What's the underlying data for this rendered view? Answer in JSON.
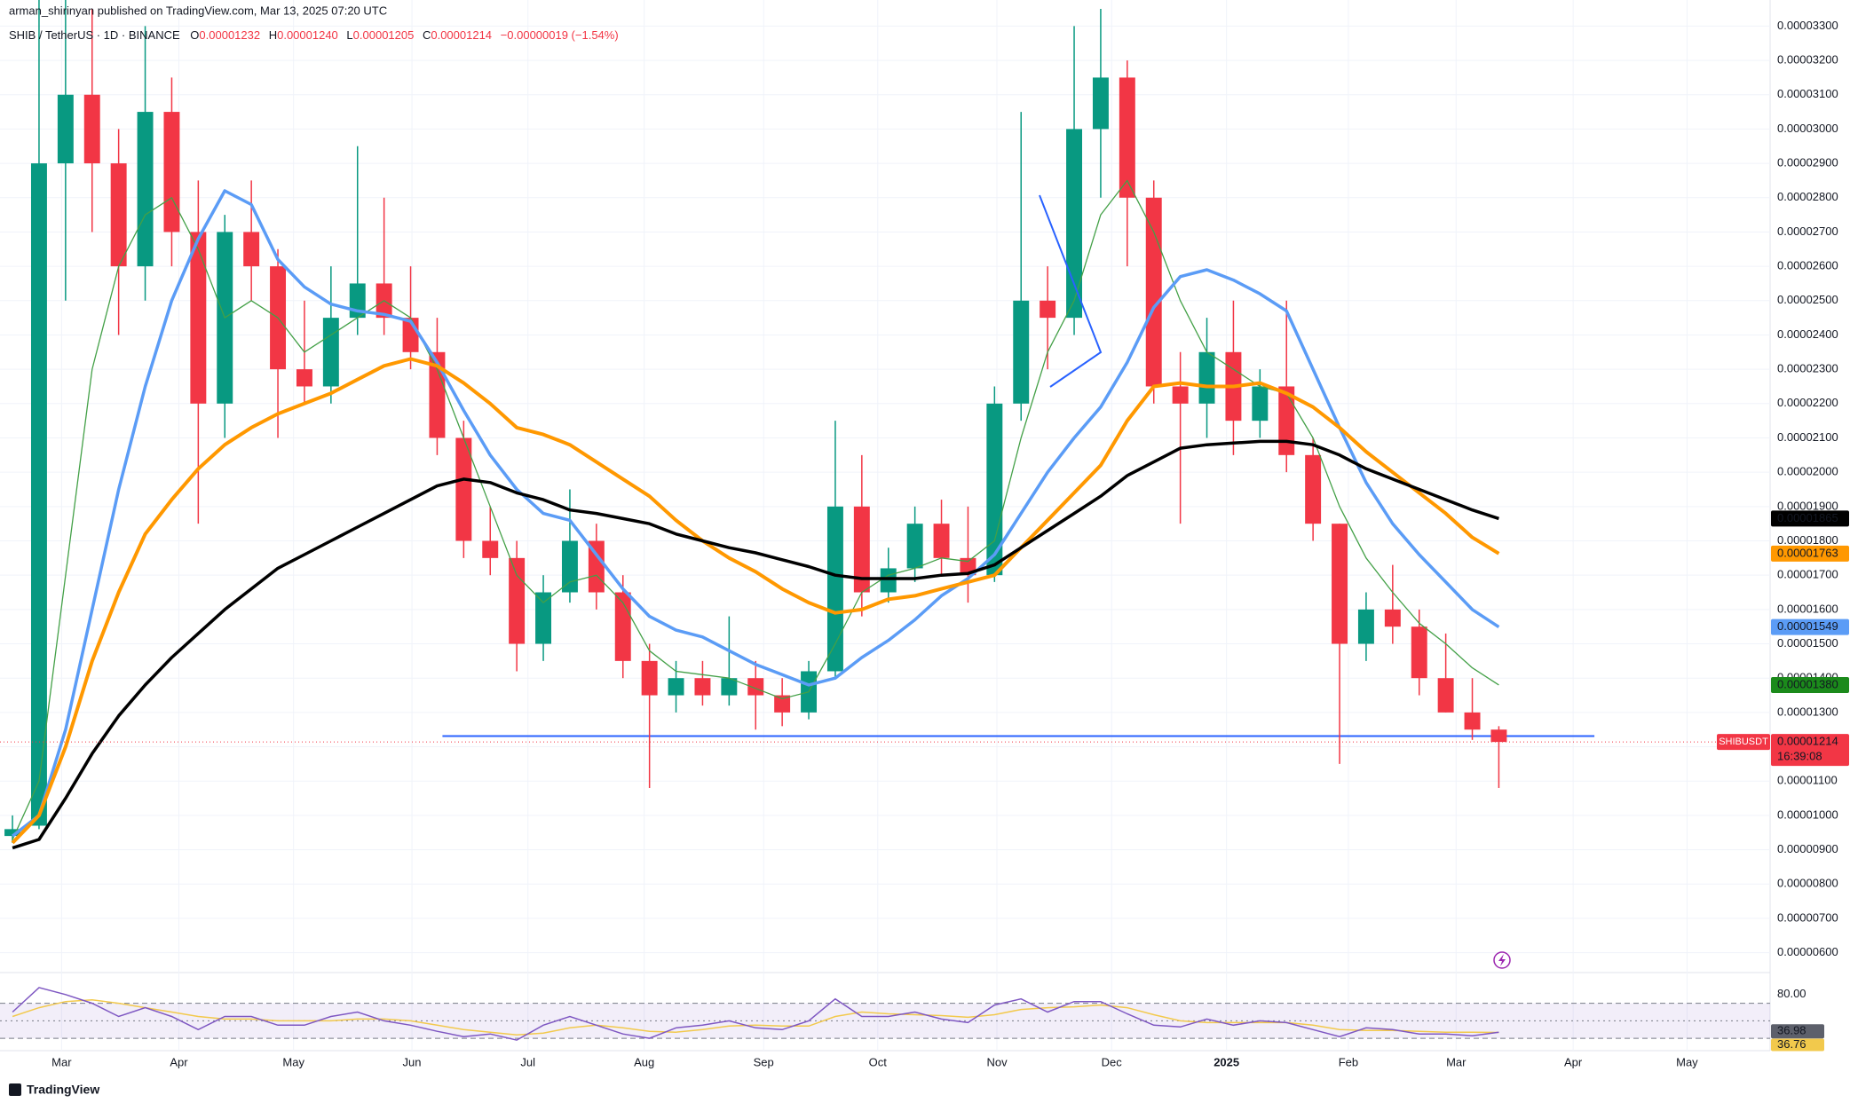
{
  "header": {
    "publisher": "arman_shirinyan published on TradingView.com, Mar 13, 2025 07:20 UTC",
    "symbol": "SHIB / TetherUS · 1D · BINANCE",
    "ohlc": [
      {
        "key": "O",
        "value": "0.00001232"
      },
      {
        "key": "H",
        "value": "0.00001240"
      },
      {
        "key": "L",
        "value": "0.00001205"
      },
      {
        "key": "C",
        "value": "0.00001214"
      }
    ],
    "change": "−0.00000019 (−1.54%)"
  },
  "chart_data": {
    "type": "candlestick",
    "categories": [
      null,
      null,
      null,
      null,
      null,
      null,
      null,
      null,
      null,
      null,
      null,
      null,
      null,
      null,
      null,
      null,
      null,
      null,
      null,
      null,
      null,
      null,
      null,
      null,
      null,
      null,
      null,
      null,
      null,
      null,
      null,
      null,
      null,
      null,
      null,
      null,
      null,
      null,
      null,
      null,
      null,
      null,
      null,
      null,
      null,
      null,
      null,
      null,
      null,
      null,
      null,
      null,
      null,
      null,
      null,
      null,
      null
    ],
    "open": [
      9.4e-06,
      9.7e-06,
      2.9e-05,
      3.1e-05,
      2.9e-05,
      2.6e-05,
      3.05e-05,
      2.7e-05,
      2.2e-05,
      2.7e-05,
      2.6e-05,
      2.3e-05,
      2.25e-05,
      2.45e-05,
      2.55e-05,
      2.45e-05,
      2.35e-05,
      2.1e-05,
      1.8e-05,
      1.75e-05,
      1.5e-05,
      1.65e-05,
      1.8e-05,
      1.65e-05,
      1.45e-05,
      1.35e-05,
      1.4e-05,
      1.35e-05,
      1.4e-05,
      1.35e-05,
      1.3e-05,
      1.42e-05,
      1.9e-05,
      1.65e-05,
      1.72e-05,
      1.85e-05,
      1.75e-05,
      1.7e-05,
      2.2e-05,
      2.5e-05,
      2.45e-05,
      3e-05,
      3.15e-05,
      2.8e-05,
      2.25e-05,
      2.2e-05,
      2.35e-05,
      2.15e-05,
      2.25e-05,
      2.05e-05,
      1.85e-05,
      1.5e-05,
      1.6e-05,
      1.55e-05,
      1.4e-05,
      1.3e-05,
      1.25e-05
    ],
    "high": [
      1e-05,
      3.4e-05,
      3.5e-05,
      3.35e-05,
      3e-05,
      3.3e-05,
      3.15e-05,
      2.85e-05,
      2.75e-05,
      2.85e-05,
      2.65e-05,
      2.5e-05,
      2.6e-05,
      2.95e-05,
      2.8e-05,
      2.6e-05,
      2.45e-05,
      2.15e-05,
      1.9e-05,
      1.8e-05,
      1.7e-05,
      1.95e-05,
      1.85e-05,
      1.7e-05,
      1.5e-05,
      1.45e-05,
      1.45e-05,
      1.58e-05,
      1.45e-05,
      1.4e-05,
      1.45e-05,
      2.15e-05,
      2.05e-05,
      1.78e-05,
      1.9e-05,
      1.92e-05,
      1.9e-05,
      2.25e-05,
      3.05e-05,
      2.6e-05,
      3.3e-05,
      3.35e-05,
      3.2e-05,
      2.85e-05,
      2.35e-05,
      2.45e-05,
      2.5e-05,
      2.3e-05,
      2.5e-05,
      2.1e-05,
      1.85e-05,
      1.65e-05,
      1.73e-05,
      1.6e-05,
      1.53e-05,
      1.4e-05,
      1.26e-05
    ],
    "low": [
      9.2e-06,
      9.6e-06,
      2.5e-05,
      2.7e-05,
      2.4e-05,
      2.5e-05,
      2.6e-05,
      1.85e-05,
      2.1e-05,
      2.5e-05,
      2.1e-05,
      2.2e-05,
      2.2e-05,
      2.4e-05,
      2.4e-05,
      2.3e-05,
      2.05e-05,
      1.75e-05,
      1.7e-05,
      1.42e-05,
      1.45e-05,
      1.62e-05,
      1.6e-05,
      1.4e-05,
      1.08e-05,
      1.3e-05,
      1.32e-05,
      1.32e-05,
      1.25e-05,
      1.26e-05,
      1.28e-05,
      1.4e-05,
      1.58e-05,
      1.62e-05,
      1.68e-05,
      1.7e-05,
      1.62e-05,
      1.68e-05,
      2.15e-05,
      2.3e-05,
      2.4e-05,
      2.8e-05,
      2.6e-05,
      2.2e-05,
      1.85e-05,
      2.1e-05,
      2.05e-05,
      2.1e-05,
      2e-05,
      1.8e-05,
      1.15e-05,
      1.45e-05,
      1.5e-05,
      1.35e-05,
      1.3e-05,
      1.22e-05,
      1.08e-05
    ],
    "close": [
      9.6e-06,
      2.9e-05,
      3.1e-05,
      2.9e-05,
      2.6e-05,
      3.05e-05,
      2.7e-05,
      2.2e-05,
      2.7e-05,
      2.6e-05,
      2.3e-05,
      2.25e-05,
      2.45e-05,
      2.55e-05,
      2.45e-05,
      2.35e-05,
      2.1e-05,
      1.8e-05,
      1.75e-05,
      1.5e-05,
      1.65e-05,
      1.8e-05,
      1.65e-05,
      1.45e-05,
      1.35e-05,
      1.4e-05,
      1.35e-05,
      1.4e-05,
      1.35e-05,
      1.3e-05,
      1.42e-05,
      1.9e-05,
      1.65e-05,
      1.72e-05,
      1.85e-05,
      1.75e-05,
      1.7e-05,
      2.2e-05,
      2.5e-05,
      2.45e-05,
      3e-05,
      3.15e-05,
      2.8e-05,
      2.25e-05,
      2.2e-05,
      2.35e-05,
      2.15e-05,
      2.25e-05,
      2.05e-05,
      1.85e-05,
      1.5e-05,
      1.6e-05,
      1.55e-05,
      1.4e-05,
      1.3e-05,
      1.25e-05,
      1.214e-05
    ],
    "up_color": "#089981",
    "down_color": "#f23645",
    "xlim": [
      -0.47,
      66.22
    ],
    "ylim": [
      5.55e-06,
      3.376e-05
    ],
    "xticks": [
      {
        "value": 1.85,
        "label": "Mar"
      },
      {
        "value": 6.27,
        "label": "Apr"
      },
      {
        "value": 10.59,
        "label": "May"
      },
      {
        "value": 15.05,
        "label": "Jun"
      },
      {
        "value": 19.42,
        "label": "Jul"
      },
      {
        "value": 23.8,
        "label": "Aug"
      },
      {
        "value": 28.3,
        "label": "Sep"
      },
      {
        "value": 32.6,
        "label": "Oct"
      },
      {
        "value": 37.09,
        "label": "Nov"
      },
      {
        "value": 41.41,
        "label": "Dec"
      },
      {
        "value": 45.74,
        "label": "2025"
      },
      {
        "value": 50.33,
        "label": "Feb"
      },
      {
        "value": 54.39,
        "label": "Mar"
      },
      {
        "value": 58.8,
        "label": "Apr"
      },
      {
        "value": 63.09,
        "label": "May"
      }
    ],
    "yticks": [
      {
        "value": 6e-06,
        "label": "0.00000600"
      },
      {
        "value": 7e-06,
        "label": "0.00000700"
      },
      {
        "value": 8e-06,
        "label": "0.00000800"
      },
      {
        "value": 9e-06,
        "label": "0.00000900"
      },
      {
        "value": 1e-05,
        "label": "0.00001000"
      },
      {
        "value": 1.1e-05,
        "label": "0.00001100"
      },
      {
        "value": 1.2e-05,
        "label": "0.00001200"
      },
      {
        "value": 1.3e-05,
        "label": "0.00001300"
      },
      {
        "value": 1.4e-05,
        "label": "0.00001400"
      },
      {
        "value": 1.5e-05,
        "label": "0.00001500"
      },
      {
        "value": 1.6e-05,
        "label": "0.00001600"
      },
      {
        "value": 1.7e-05,
        "label": "0.00001700"
      },
      {
        "value": 1.8e-05,
        "label": "0.00001800"
      },
      {
        "value": 1.9e-05,
        "label": "0.00001900"
      },
      {
        "value": 2e-05,
        "label": "0.00002000"
      },
      {
        "value": 2.1e-05,
        "label": "0.00002100"
      },
      {
        "value": 2.2e-05,
        "label": "0.00002200"
      },
      {
        "value": 2.3e-05,
        "label": "0.00002300"
      },
      {
        "value": 2.4e-05,
        "label": "0.00002400"
      },
      {
        "value": 2.5e-05,
        "label": "0.00002500"
      },
      {
        "value": 2.6e-05,
        "label": "0.00002600"
      },
      {
        "value": 2.7e-05,
        "label": "0.00002700"
      },
      {
        "value": 2.8e-05,
        "label": "0.00002800"
      },
      {
        "value": 2.9e-05,
        "label": "0.00002900"
      },
      {
        "value": 3e-05,
        "label": "0.00003000"
      },
      {
        "value": 3.1e-05,
        "label": "0.00003100"
      },
      {
        "value": 3.2e-05,
        "label": "0.00003200"
      },
      {
        "value": 3.3e-05,
        "label": "0.00003300"
      }
    ],
    "grid": true,
    "moving_averages": [
      {
        "color": "#43a047",
        "width": 1.3,
        "last_label": "0.00001380",
        "label_color": "#1b8a1b",
        "values": [
          9.3e-06,
          1.1e-05,
          1.7e-05,
          2.3e-05,
          2.6e-05,
          2.75e-05,
          2.8e-05,
          2.65e-05,
          2.45e-05,
          2.5e-05,
          2.45e-05,
          2.35e-05,
          2.4e-05,
          2.45e-05,
          2.5e-05,
          2.45e-05,
          2.3e-05,
          2.1e-05,
          1.9e-05,
          1.7e-05,
          1.62e-05,
          1.68e-05,
          1.7e-05,
          1.62e-05,
          1.48e-05,
          1.42e-05,
          1.41e-05,
          1.4e-05,
          1.37e-05,
          1.34e-05,
          1.36e-05,
          1.5e-05,
          1.65e-05,
          1.7e-05,
          1.72e-05,
          1.75e-05,
          1.74e-05,
          1.8e-05,
          2.1e-05,
          2.35e-05,
          2.5e-05,
          2.75e-05,
          2.85e-05,
          2.7e-05,
          2.5e-05,
          2.35e-05,
          2.3e-05,
          2.25e-05,
          2.23e-05,
          2.1e-05,
          1.9e-05,
          1.75e-05,
          1.65e-05,
          1.56e-05,
          1.5e-05,
          1.43e-05,
          1.38e-05
        ]
      },
      {
        "color": "#5b9cf6",
        "width": 3.5,
        "last_label": "0.00001549",
        "label_color": "#5b9cf6",
        "values": [
          9.4e-06,
          1e-05,
          1.25e-05,
          1.6e-05,
          1.95e-05,
          2.25e-05,
          2.5e-05,
          2.68e-05,
          2.82e-05,
          2.78e-05,
          2.62e-05,
          2.54e-05,
          2.49e-05,
          2.47e-05,
          2.46e-05,
          2.44e-05,
          2.32e-05,
          2.18e-05,
          2.05e-05,
          1.95e-05,
          1.88e-05,
          1.86e-05,
          1.76e-05,
          1.66e-05,
          1.58e-05,
          1.54e-05,
          1.52e-05,
          1.48e-05,
          1.44e-05,
          1.41e-05,
          1.38e-05,
          1.4e-05,
          1.46e-05,
          1.51e-05,
          1.57e-05,
          1.64e-05,
          1.69e-05,
          1.76e-05,
          1.88e-05,
          2e-05,
          2.1e-05,
          2.19e-05,
          2.32e-05,
          2.48e-05,
          2.57e-05,
          2.59e-05,
          2.56e-05,
          2.52e-05,
          2.47e-05,
          2.3e-05,
          2.13e-05,
          1.97e-05,
          1.85e-05,
          1.76e-05,
          1.68e-05,
          1.6e-05,
          1.549e-05
        ]
      },
      {
        "color": "#ff9800",
        "width": 4,
        "last_label": "0.00001763",
        "label_color": "#ff9800",
        "values": [
          9.2e-06,
          1e-05,
          1.2e-05,
          1.45e-05,
          1.65e-05,
          1.82e-05,
          1.92e-05,
          2.01e-05,
          2.08e-05,
          2.13e-05,
          2.17e-05,
          2.2e-05,
          2.23e-05,
          2.27e-05,
          2.31e-05,
          2.33e-05,
          2.31e-05,
          2.26e-05,
          2.2e-05,
          2.13e-05,
          2.11e-05,
          2.08e-05,
          2.03e-05,
          1.98e-05,
          1.93e-05,
          1.86e-05,
          1.8e-05,
          1.75e-05,
          1.71e-05,
          1.66e-05,
          1.62e-05,
          1.59e-05,
          1.6e-05,
          1.63e-05,
          1.64e-05,
          1.66e-05,
          1.68e-05,
          1.7e-05,
          1.78e-05,
          1.86e-05,
          1.94e-05,
          2.02e-05,
          2.15e-05,
          2.25e-05,
          2.26e-05,
          2.25e-05,
          2.25e-05,
          2.26e-05,
          2.23e-05,
          2.19e-05,
          2.13e-05,
          2.06e-05,
          2e-05,
          1.94e-05,
          1.88e-05,
          1.81e-05,
          1.763e-05
        ]
      },
      {
        "color": "#000000",
        "width": 3.5,
        "last_label": "0.00001865",
        "label_color": "#000000",
        "values": [
          9.05e-06,
          9.3e-06,
          1.05e-05,
          1.18e-05,
          1.29e-05,
          1.38e-05,
          1.46e-05,
          1.53e-05,
          1.6e-05,
          1.66e-05,
          1.72e-05,
          1.76e-05,
          1.8e-05,
          1.84e-05,
          1.88e-05,
          1.92e-05,
          1.96e-05,
          1.98e-05,
          1.97e-05,
          1.94e-05,
          1.92e-05,
          1.89e-05,
          1.88e-05,
          1.865e-05,
          1.85e-05,
          1.82e-05,
          1.8e-05,
          1.78e-05,
          1.765e-05,
          1.745e-05,
          1.725e-05,
          1.7e-05,
          1.69e-05,
          1.69e-05,
          1.69e-05,
          1.7e-05,
          1.705e-05,
          1.73e-05,
          1.78e-05,
          1.83e-05,
          1.88e-05,
          1.93e-05,
          1.99e-05,
          2.03e-05,
          2.07e-05,
          2.08e-05,
          2.085e-05,
          2.09e-05,
          2.09e-05,
          2.08e-05,
          2.05e-05,
          2.01e-05,
          1.98e-05,
          1.95e-05,
          1.92e-05,
          1.89e-05,
          1.865e-05
        ]
      }
    ],
    "support": {
      "value": 1.231e-05,
      "from": 16.2,
      "to": 59.6,
      "color": "#2962ff"
    },
    "last_price": {
      "symbol": "SHIBUSDT",
      "label": "0.00001214",
      "countdown": "16:39:08"
    }
  },
  "rsi": {
    "type": "line",
    "ylim": [
      20,
      97
    ],
    "yticks": [
      {
        "value": 80,
        "label": "80.00"
      }
    ],
    "levels": [
      70,
      50,
      30
    ],
    "color": "#7e57c2",
    "ma_color": "#f2c94c",
    "values": [
      60,
      88,
      80,
      70,
      55,
      65,
      55,
      40,
      55,
      55,
      45,
      45,
      55,
      60,
      50,
      45,
      38,
      32,
      35,
      28,
      45,
      55,
      45,
      35,
      30,
      42,
      45,
      50,
      42,
      40,
      50,
      75,
      55,
      55,
      60,
      52,
      48,
      68,
      75,
      60,
      72,
      72,
      58,
      45,
      43,
      52,
      45,
      50,
      48,
      40,
      32,
      42,
      40,
      35,
      35,
      33,
      36.98
    ],
    "ma_values": [
      55,
      65,
      72,
      74,
      70,
      65,
      60,
      55,
      52,
      52,
      50,
      50,
      50,
      52,
      52,
      50,
      45,
      40,
      37,
      34,
      36,
      42,
      45,
      42,
      38,
      37,
      40,
      44,
      45,
      44,
      44,
      55,
      60,
      58,
      57,
      56,
      54,
      57,
      63,
      65,
      66,
      68,
      65,
      57,
      50,
      48,
      48,
      48,
      48,
      45,
      40,
      39,
      39,
      38,
      37,
      37,
      36.76
    ],
    "value_label": "36.98",
    "ma_label": "36.76"
  },
  "footer": {
    "brand": "TradingView"
  }
}
